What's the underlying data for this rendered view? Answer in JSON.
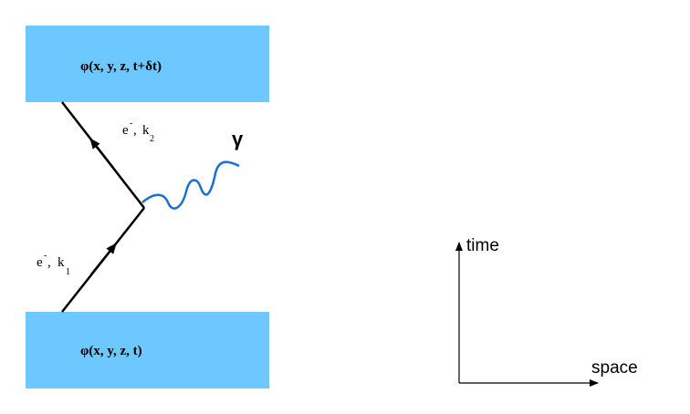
{
  "top_state": {
    "label": "φ(x, y, z, t+δt)"
  },
  "bottom_state": {
    "label": "φ(x, y, z, t)"
  },
  "outgoing_electron": {
    "particle": "e",
    "charge": "-",
    "momentum": "k",
    "index": "2"
  },
  "incoming_electron": {
    "particle": "e",
    "charge": "-",
    "momentum": "k",
    "index": "1"
  },
  "photon": {
    "label": "γ"
  },
  "axes": {
    "vertical": "time",
    "horizontal": "space"
  }
}
